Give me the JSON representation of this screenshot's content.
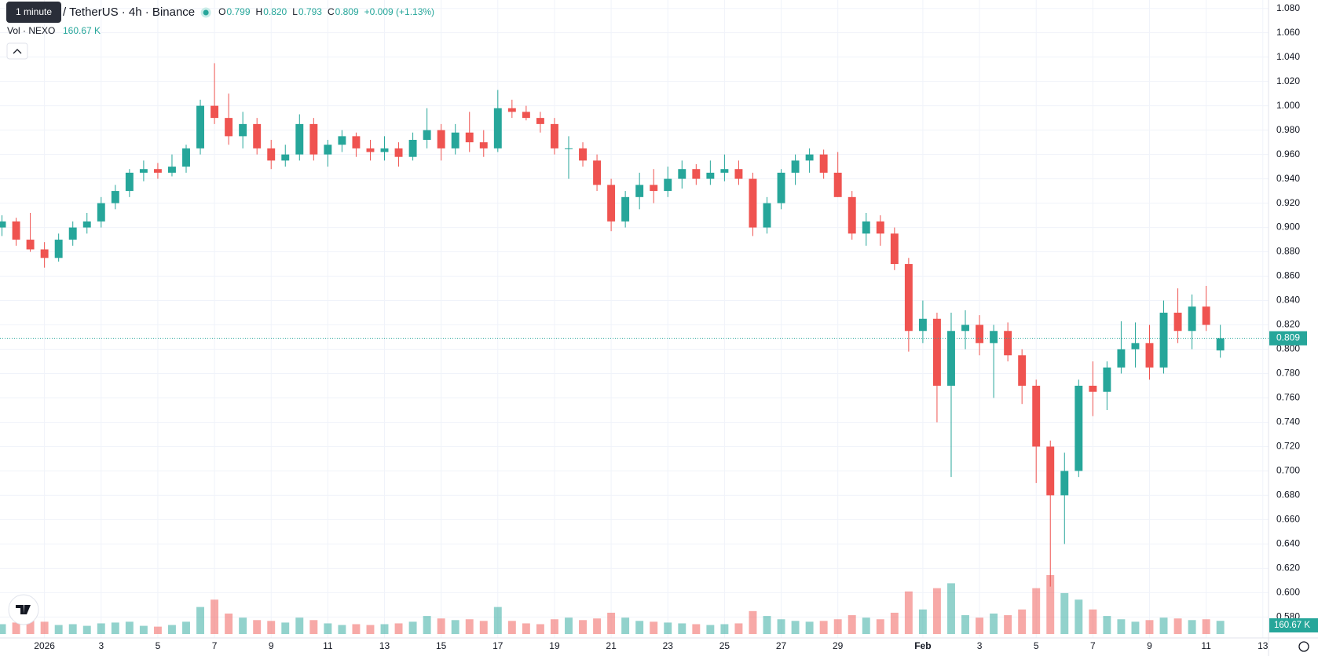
{
  "chart_data": {
    "type": "candlestick",
    "title": "/ TetherUS · 4h · Binance",
    "tooltip": "1 minute",
    "legend": {
      "items": [
        {
          "key": "O",
          "value": "0.799"
        },
        {
          "key": "H",
          "value": "0.820"
        },
        {
          "key": "L",
          "value": "0.793"
        },
        {
          "key": "C",
          "value": "0.809"
        }
      ],
      "change": "+0.009 (+1.13%)"
    },
    "up_color": "#26a69a",
    "down_color": "#ef5350",
    "x": [
      -1.5,
      -1,
      -0.5,
      0,
      0.5,
      1,
      1.5,
      2,
      2.5,
      3,
      3.5,
      4,
      4.5,
      5,
      5.5,
      6,
      6.5,
      7,
      7.5,
      8,
      8.5,
      9,
      9.5,
      10,
      10.5,
      11,
      11.5,
      12,
      12.5,
      13,
      13.5,
      14,
      14.5,
      15,
      15.5,
      16,
      16.5,
      17,
      17.5,
      18,
      18.5,
      19,
      19.5,
      20,
      20.5,
      21,
      21.5,
      22,
      22.5,
      23,
      23.5,
      24,
      24.5,
      25,
      25.5,
      26,
      26.5,
      27,
      27.5,
      28,
      28.5,
      29,
      29.5,
      30,
      30.5,
      31,
      31.5,
      32,
      32.5,
      33,
      33.5,
      34,
      34.5,
      35,
      35.5,
      36,
      36.5,
      37,
      37.5,
      38,
      38.5,
      39,
      39.5,
      40,
      40.5,
      41,
      41.5
    ],
    "open": [
      0.9,
      0.905,
      0.89,
      0.882,
      0.875,
      0.89,
      0.9,
      0.905,
      0.92,
      0.93,
      0.945,
      0.948,
      0.945,
      0.95,
      0.965,
      1.0,
      0.99,
      0.975,
      0.985,
      0.965,
      0.955,
      0.96,
      0.985,
      0.96,
      0.968,
      0.975,
      0.965,
      0.962,
      0.965,
      0.958,
      0.972,
      0.98,
      0.965,
      0.978,
      0.97,
      0.965,
      0.998,
      0.995,
      0.99,
      0.985,
      0.965,
      0.965,
      0.955,
      0.935,
      0.905,
      0.925,
      0.935,
      0.93,
      0.94,
      0.948,
      0.94,
      0.945,
      0.948,
      0.94,
      0.9,
      0.92,
      0.945,
      0.955,
      0.96,
      0.945,
      0.925,
      0.895,
      0.905,
      0.895,
      0.87,
      0.815,
      0.825,
      0.77,
      0.815,
      0.82,
      0.805,
      0.815,
      0.795,
      0.77,
      0.72,
      0.68,
      0.7,
      0.77,
      0.765,
      0.785,
      0.8,
      0.805,
      0.785,
      0.83,
      0.815,
      0.835,
      0.799
    ],
    "high": [
      0.91,
      0.908,
      0.912,
      0.888,
      0.895,
      0.905,
      0.912,
      0.925,
      0.935,
      0.948,
      0.955,
      0.953,
      0.96,
      0.968,
      1.005,
      1.035,
      1.01,
      0.995,
      0.99,
      0.972,
      0.968,
      0.993,
      0.99,
      0.972,
      0.98,
      0.978,
      0.972,
      0.975,
      0.97,
      0.978,
      0.998,
      0.985,
      0.985,
      0.995,
      0.98,
      1.013,
      1.005,
      1.0,
      0.995,
      0.99,
      0.975,
      0.97,
      0.96,
      0.94,
      0.93,
      0.945,
      0.948,
      0.95,
      0.955,
      0.952,
      0.955,
      0.96,
      0.955,
      0.945,
      0.925,
      0.948,
      0.96,
      0.965,
      0.964,
      0.962,
      0.93,
      0.912,
      0.91,
      0.9,
      0.875,
      0.84,
      0.83,
      0.83,
      0.832,
      0.828,
      0.82,
      0.822,
      0.8,
      0.775,
      0.725,
      0.715,
      0.775,
      0.79,
      0.79,
      0.823,
      0.822,
      0.82,
      0.84,
      0.85,
      0.845,
      0.852,
      0.82
    ],
    "low": [
      0.893,
      0.885,
      0.88,
      0.867,
      0.872,
      0.885,
      0.895,
      0.9,
      0.915,
      0.925,
      0.938,
      0.94,
      0.942,
      0.945,
      0.96,
      0.985,
      0.968,
      0.965,
      0.96,
      0.948,
      0.95,
      0.955,
      0.955,
      0.95,
      0.962,
      0.958,
      0.955,
      0.955,
      0.95,
      0.955,
      0.965,
      0.955,
      0.96,
      0.962,
      0.958,
      0.962,
      0.99,
      0.988,
      0.978,
      0.96,
      0.94,
      0.95,
      0.93,
      0.897,
      0.9,
      0.915,
      0.92,
      0.925,
      0.932,
      0.935,
      0.935,
      0.938,
      0.935,
      0.893,
      0.895,
      0.915,
      0.935,
      0.945,
      0.94,
      0.925,
      0.89,
      0.885,
      0.885,
      0.865,
      0.798,
      0.805,
      0.74,
      0.695,
      0.8,
      0.795,
      0.76,
      0.79,
      0.755,
      0.69,
      0.605,
      0.64,
      0.695,
      0.745,
      0.75,
      0.78,
      0.785,
      0.775,
      0.78,
      0.805,
      0.8,
      0.815,
      0.793
    ],
    "close": [
      0.905,
      0.89,
      0.882,
      0.875,
      0.89,
      0.9,
      0.905,
      0.92,
      0.93,
      0.945,
      0.948,
      0.945,
      0.95,
      0.965,
      1.0,
      0.99,
      0.975,
      0.985,
      0.965,
      0.955,
      0.96,
      0.985,
      0.96,
      0.968,
      0.975,
      0.965,
      0.962,
      0.965,
      0.958,
      0.972,
      0.98,
      0.965,
      0.978,
      0.97,
      0.965,
      0.998,
      0.995,
      0.99,
      0.985,
      0.965,
      0.965,
      0.955,
      0.935,
      0.905,
      0.925,
      0.935,
      0.93,
      0.94,
      0.948,
      0.94,
      0.945,
      0.948,
      0.94,
      0.9,
      0.92,
      0.945,
      0.955,
      0.96,
      0.945,
      0.925,
      0.895,
      0.905,
      0.895,
      0.87,
      0.815,
      0.825,
      0.77,
      0.815,
      0.82,
      0.805,
      0.815,
      0.795,
      0.77,
      0.72,
      0.68,
      0.7,
      0.77,
      0.765,
      0.785,
      0.8,
      0.805,
      0.785,
      0.83,
      0.815,
      0.835,
      0.82,
      0.809
    ],
    "volume": {
      "name": "Vol · NEXO",
      "last_label": "160.67 K",
      "values": [
        120,
        140,
        160,
        150,
        110,
        120,
        100,
        130,
        140,
        150,
        100,
        90,
        110,
        150,
        330,
        420,
        250,
        200,
        170,
        160,
        140,
        200,
        170,
        130,
        110,
        120,
        110,
        120,
        130,
        150,
        220,
        190,
        170,
        180,
        160,
        330,
        160,
        130,
        120,
        180,
        200,
        170,
        190,
        260,
        200,
        160,
        150,
        140,
        130,
        120,
        110,
        120,
        130,
        280,
        220,
        180,
        160,
        150,
        160,
        180,
        230,
        200,
        180,
        260,
        520,
        300,
        560,
        620,
        230,
        200,
        250,
        230,
        300,
        560,
        720,
        500,
        420,
        300,
        220,
        180,
        150,
        170,
        200,
        190,
        170,
        180,
        160.67
      ]
    },
    "xlim": [
      -1.57,
      43.2
    ],
    "ylim": [
      0.5628,
      1.0869
    ],
    "xticks": [
      {
        "value": 0,
        "label": "2026"
      },
      {
        "value": 2,
        "label": "3"
      },
      {
        "value": 4,
        "label": "5"
      },
      {
        "value": 6,
        "label": "7"
      },
      {
        "value": 8,
        "label": "9"
      },
      {
        "value": 10,
        "label": "11"
      },
      {
        "value": 12,
        "label": "13"
      },
      {
        "value": 14,
        "label": "15"
      },
      {
        "value": 16,
        "label": "17"
      },
      {
        "value": 18,
        "label": "19"
      },
      {
        "value": 20,
        "label": "21"
      },
      {
        "value": 22,
        "label": "23"
      },
      {
        "value": 24,
        "label": "25"
      },
      {
        "value": 26,
        "label": "27"
      },
      {
        "value": 28,
        "label": "29"
      },
      {
        "value": 31,
        "label": "Feb"
      },
      {
        "value": 33,
        "label": "3"
      },
      {
        "value": 35,
        "label": "5"
      },
      {
        "value": 37,
        "label": "7"
      },
      {
        "value": 39,
        "label": "9"
      },
      {
        "value": 41,
        "label": "11"
      },
      {
        "value": 43,
        "label": "13"
      }
    ],
    "yticks": [
      {
        "value": 0.58,
        "label": "0.580"
      },
      {
        "value": 0.6,
        "label": "0.600"
      },
      {
        "value": 0.62,
        "label": "0.620"
      },
      {
        "value": 0.64,
        "label": "0.640"
      },
      {
        "value": 0.66,
        "label": "0.660"
      },
      {
        "value": 0.68,
        "label": "0.680"
      },
      {
        "value": 0.7,
        "label": "0.700"
      },
      {
        "value": 0.72,
        "label": "0.720"
      },
      {
        "value": 0.74,
        "label": "0.740"
      },
      {
        "value": 0.76,
        "label": "0.760"
      },
      {
        "value": 0.78,
        "label": "0.780"
      },
      {
        "value": 0.8,
        "label": "0.800"
      },
      {
        "value": 0.82,
        "label": "0.820"
      },
      {
        "value": 0.84,
        "label": "0.840"
      },
      {
        "value": 0.86,
        "label": "0.860"
      },
      {
        "value": 0.88,
        "label": "0.880"
      },
      {
        "value": 0.9,
        "label": "0.900"
      },
      {
        "value": 0.92,
        "label": "0.920"
      },
      {
        "value": 0.94,
        "label": "0.940"
      },
      {
        "value": 0.96,
        "label": "0.960"
      },
      {
        "value": 0.98,
        "label": "0.980"
      },
      {
        "value": 1.0,
        "label": "1.000"
      },
      {
        "value": 1.02,
        "label": "1.020"
      },
      {
        "value": 1.04,
        "label": "1.040"
      },
      {
        "value": 1.06,
        "label": "1.060"
      },
      {
        "value": 1.08,
        "label": "1.080"
      }
    ],
    "grid": true
  }
}
